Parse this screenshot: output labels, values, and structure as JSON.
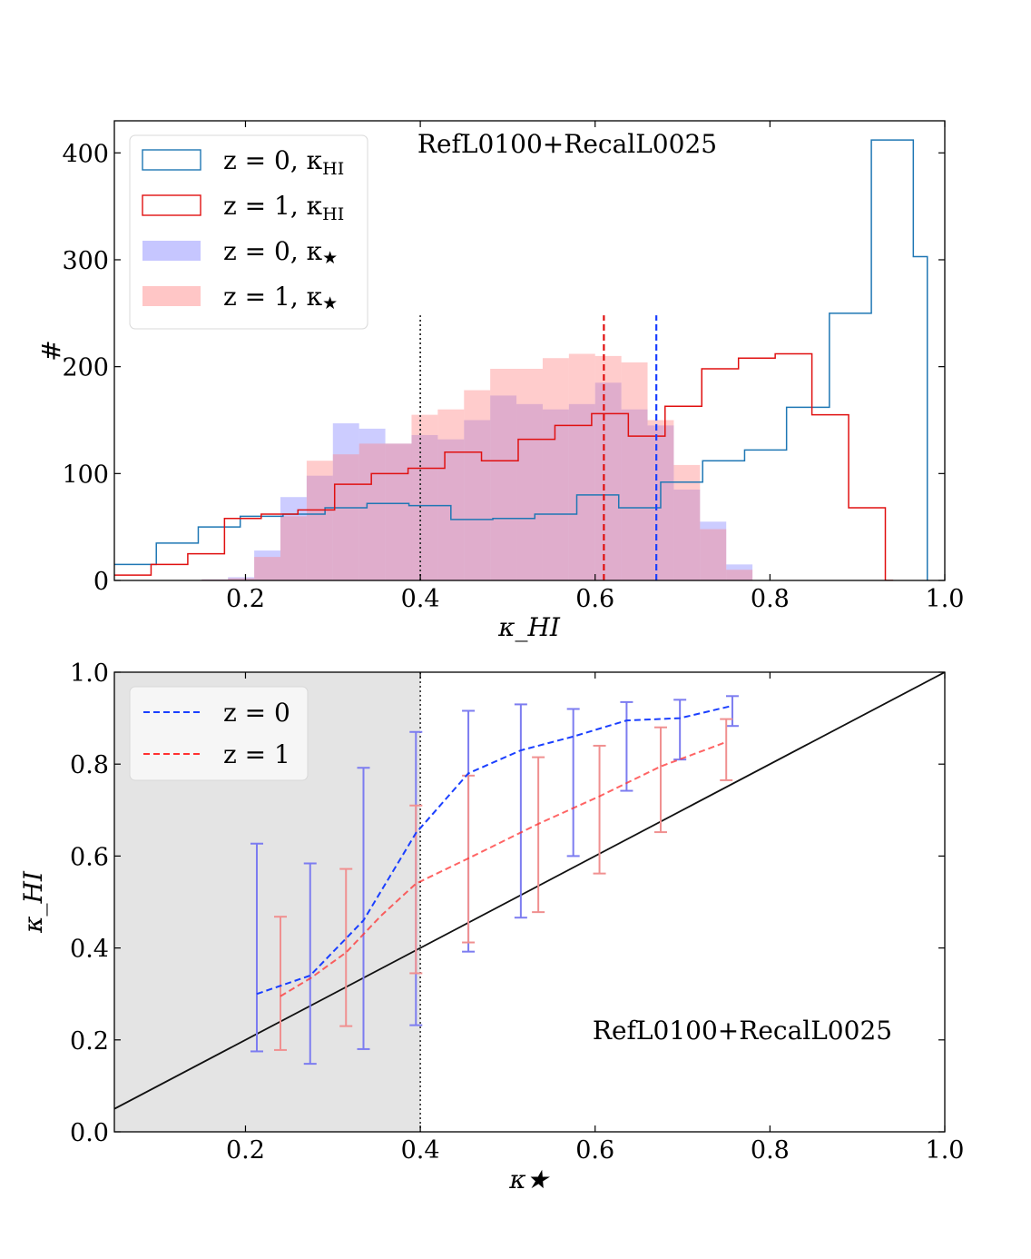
{
  "chart_data": [
    {
      "type": "histogram",
      "xlabel": "κ_HI",
      "ylabel": "#",
      "xlim": [
        0.05,
        1.0
      ],
      "ylim": [
        0,
        430
      ],
      "x_ticks": [
        0.2,
        0.4,
        0.6,
        0.8,
        1.0
      ],
      "x_tick_labels": [
        "0.2",
        "0.4",
        "0.6",
        "0.8",
        "1.0"
      ],
      "y_ticks": [
        0,
        100,
        200,
        300,
        400
      ],
      "y_tick_labels": [
        "0",
        "100",
        "200",
        "300",
        "400"
      ],
      "annotation": "RefL0100+RecalL0025",
      "legend_position": "top-left",
      "legend": [
        {
          "label": "z = 0, κHI",
          "main": "z = 0, κ",
          "sub": "HI",
          "color": "#1f77b4",
          "style": "step"
        },
        {
          "label": "z = 1, κHI",
          "main": "z = 1, κ",
          "sub": "HI",
          "color": "#e01010",
          "style": "step"
        },
        {
          "label": "z = 0, κ★",
          "main": "z = 0, κ",
          "sub": "★",
          "color": "#8080ff",
          "style": "filled"
        },
        {
          "label": "z = 1, κ★",
          "main": "z = 1, κ",
          "sub": "★",
          "color": "#ff8080",
          "style": "filled"
        }
      ],
      "series": [
        {
          "name": "z = 0, κHI",
          "style": "step",
          "color": "#1f77b4",
          "edges": [
            0.05,
            0.098,
            0.146,
            0.194,
            0.243,
            0.291,
            0.339,
            0.387,
            0.435,
            0.483,
            0.531,
            0.579,
            0.627,
            0.675,
            0.723,
            0.771,
            0.819,
            0.868,
            0.916,
            0.964,
            0.98
          ],
          "values": [
            15,
            35,
            50,
            60,
            62,
            68,
            72,
            70,
            57,
            58,
            62,
            80,
            68,
            92,
            112,
            122,
            162,
            250,
            412,
            303
          ]
        },
        {
          "name": "z = 1, κHI",
          "style": "step",
          "color": "#e01010",
          "edges": [
            0.05,
            0.092,
            0.134,
            0.176,
            0.218,
            0.26,
            0.302,
            0.344,
            0.386,
            0.428,
            0.47,
            0.512,
            0.554,
            0.596,
            0.638,
            0.68,
            0.722,
            0.764,
            0.806,
            0.848,
            0.89,
            0.932,
            0.941
          ],
          "values": [
            5,
            15,
            25,
            58,
            62,
            66,
            90,
            100,
            105,
            120,
            112,
            132,
            145,
            156,
            135,
            163,
            198,
            208,
            212,
            155,
            68,
            0
          ]
        },
        {
          "name": "z = 0, κ★",
          "style": "filled",
          "color": "#8080ff",
          "edges": [
            0.15,
            0.18,
            0.21,
            0.24,
            0.27,
            0.3,
            0.33,
            0.36,
            0.39,
            0.42,
            0.45,
            0.48,
            0.51,
            0.54,
            0.57,
            0.6,
            0.63,
            0.66,
            0.69,
            0.72,
            0.75,
            0.78
          ],
          "values": [
            1,
            3,
            28,
            78,
            98,
            147,
            142,
            128,
            136,
            132,
            150,
            173,
            165,
            160,
            165,
            185,
            160,
            145,
            85,
            55,
            15
          ]
        },
        {
          "name": "z = 1, κ★",
          "style": "filled",
          "color": "#ff8080",
          "edges": [
            0.15,
            0.18,
            0.21,
            0.24,
            0.27,
            0.3,
            0.33,
            0.36,
            0.39,
            0.42,
            0.45,
            0.48,
            0.51,
            0.54,
            0.57,
            0.6,
            0.63,
            0.66,
            0.69,
            0.72,
            0.75,
            0.78
          ],
          "values": [
            1,
            2,
            22,
            60,
            112,
            118,
            128,
            128,
            155,
            160,
            178,
            198,
            198,
            208,
            212,
            210,
            204,
            150,
            108,
            48,
            10
          ]
        }
      ],
      "vlines": [
        {
          "x": 0.4,
          "color": "#333333",
          "style": "dotted",
          "y_top": 248
        },
        {
          "x": 0.61,
          "color": "#e01010",
          "style": "dashed",
          "y_top": 248
        },
        {
          "x": 0.67,
          "color": "#1a3fff",
          "style": "dashed",
          "y_top": 248
        }
      ]
    },
    {
      "type": "line",
      "xlabel": "κ★",
      "ylabel": "κ_HI",
      "xlim": [
        0.05,
        1.0
      ],
      "ylim": [
        0.0,
        1.0
      ],
      "x_ticks": [
        0.2,
        0.4,
        0.6,
        0.8,
        1.0
      ],
      "x_tick_labels": [
        "0.2",
        "0.4",
        "0.6",
        "0.8",
        "1.0"
      ],
      "y_ticks": [
        0.0,
        0.2,
        0.4,
        0.6,
        0.8,
        1.0
      ],
      "y_tick_labels": [
        "0.0",
        "0.2",
        "0.4",
        "0.6",
        "0.8",
        "1.0"
      ],
      "annotation": "RefL0100+RecalL0025",
      "legend_position": "top-left",
      "shaded_region": {
        "x0": 0.05,
        "x1": 0.4,
        "color": "#e4e4e4"
      },
      "legend": [
        {
          "label": "z = 0",
          "color": "#1a3fff"
        },
        {
          "label": "z = 1",
          "color": "#ff3030"
        }
      ],
      "one_to_one_line": {
        "color": "#111111",
        "x": [
          0.05,
          1.0
        ],
        "y": [
          0.05,
          1.0
        ]
      },
      "vline": {
        "x": 0.4,
        "style": "dotted",
        "color": "#333333"
      },
      "series": [
        {
          "name": "z = 0",
          "color": "#1a3fff",
          "errcolor": "#7c7cf0",
          "x": [
            0.213,
            0.274,
            0.335,
            0.395,
            0.455,
            0.515,
            0.575,
            0.636,
            0.697,
            0.757
          ],
          "y": [
            0.3,
            0.34,
            0.46,
            0.65,
            0.78,
            0.83,
            0.86,
            0.895,
            0.9,
            0.927
          ],
          "err_low": [
            0.175,
            0.148,
            0.18,
            0.232,
            0.392,
            0.466,
            0.6,
            0.742,
            0.81,
            0.883
          ],
          "err_high": [
            0.627,
            0.584,
            0.792,
            0.87,
            0.916,
            0.93,
            0.92,
            0.935,
            0.94,
            0.948
          ]
        },
        {
          "name": "z = 1",
          "color": "#ff3030",
          "errcolor": "#f09090",
          "x": [
            0.24,
            0.275,
            0.315,
            0.355,
            0.395,
            0.455,
            0.535,
            0.605,
            0.675,
            0.75
          ],
          "y": [
            0.295,
            0.335,
            0.39,
            0.47,
            0.54,
            0.595,
            0.67,
            0.73,
            0.795,
            0.848
          ],
          "err_low": [
            0.178,
            null,
            0.23,
            null,
            0.345,
            0.412,
            0.478,
            0.562,
            0.652,
            0.765
          ],
          "err_high": [
            0.468,
            null,
            0.572,
            null,
            0.71,
            0.775,
            0.815,
            0.84,
            0.88,
            0.898
          ]
        }
      ]
    }
  ]
}
